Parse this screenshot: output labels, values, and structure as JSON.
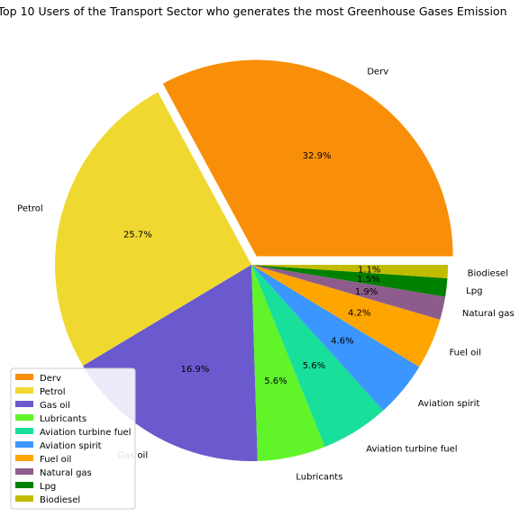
{
  "chart_data": {
    "type": "pie",
    "title": "Top 10 Users of the Transport Sector who generates the most Greenhouse Gases Emission",
    "categories": [
      "Derv",
      "Petrol",
      "Gas oil",
      "Lubricants",
      "Aviation turbine fuel",
      "Aviation spirit",
      "Fuel oil",
      "Natural gas",
      "Lpg",
      "Biodiesel"
    ],
    "values": [
      32.9,
      25.7,
      16.9,
      5.6,
      5.6,
      4.6,
      4.2,
      1.9,
      1.5,
      1.1
    ],
    "value_labels": [
      "32.9%",
      "25.7%",
      "16.9%",
      "5.6%",
      "5.6%",
      "4.6%",
      "4.2%",
      "1.9%",
      "1.5%",
      "1.1%"
    ],
    "colors": [
      "#f98f08",
      "#efd931",
      "#6a5acd",
      "#60f429",
      "#18df99",
      "#3b96ff",
      "#ffa500",
      "#8e5c8c",
      "#008000",
      "#c2bc00"
    ],
    "exploded": "Derv",
    "start": "counter-clockwise from 0 degrees (east)",
    "legend": {
      "position": "lower-left",
      "entries": [
        "Derv",
        "Petrol",
        "Gas oil",
        "Lubricants",
        "Aviation turbine fuel",
        "Aviation spirit",
        "Fuel oil",
        "Natural gas",
        "Lpg",
        "Biodiesel"
      ]
    }
  }
}
